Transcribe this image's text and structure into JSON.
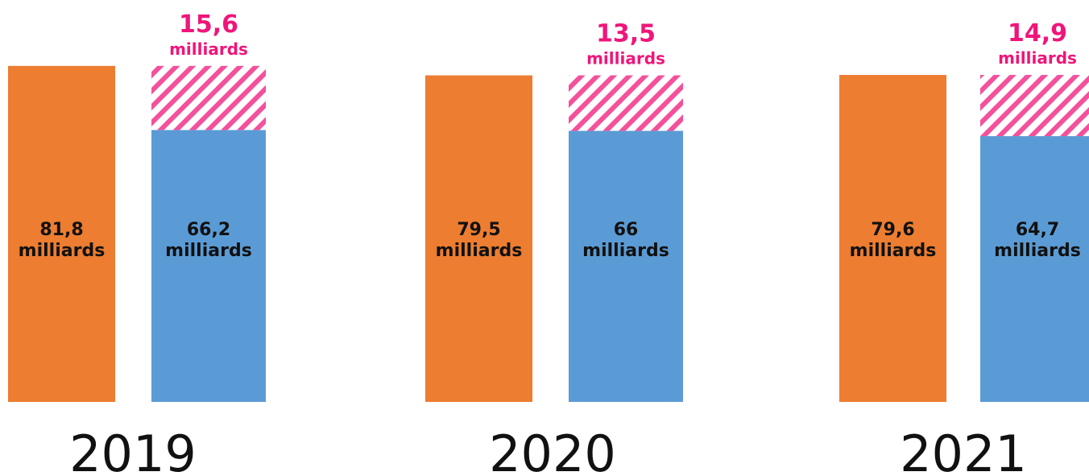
{
  "chart_data": {
    "type": "bar",
    "categories": [
      "2019",
      "2020",
      "2021"
    ],
    "unit_label": "milliards",
    "series": [
      {
        "values": [
          81.8,
          79.5,
          79.6
        ],
        "labels": [
          "81,8",
          "79,5",
          "79,6"
        ]
      },
      {
        "values": [
          66.2,
          66.0,
          64.7
        ],
        "labels": [
          "66,2",
          "66",
          "64,7"
        ]
      }
    ],
    "gap": {
      "values": [
        15.6,
        13.5,
        14.9
      ],
      "labels": [
        "15,6",
        "13,5",
        "14,9"
      ]
    },
    "colors": {
      "series_1": "#ed7d31",
      "series_2": "#5b9bd5",
      "gap_hatch": "#f0157a",
      "gap_label": "#f0157a"
    },
    "legend": "none",
    "grid": false
  }
}
